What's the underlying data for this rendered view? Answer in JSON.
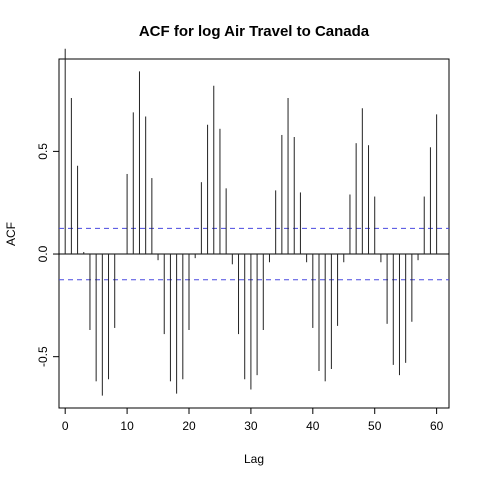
{
  "chart_data": {
    "type": "bar",
    "title": "ACF for log Air Travel to Canada",
    "xlabel": "Lag",
    "ylabel": "ACF",
    "xlim": [
      -1,
      62
    ],
    "ylim": [
      -0.75,
      0.95
    ],
    "x_ticks": [
      0,
      10,
      20,
      30,
      40,
      50,
      60
    ],
    "x_tick_labels": [
      "0",
      "10",
      "20",
      "30",
      "40",
      "50",
      "60"
    ],
    "y_ticks": [
      -0.5,
      0.0,
      0.5
    ],
    "y_tick_labels": [
      "-0.5",
      "0.0",
      "0.5"
    ],
    "confidence_bound": 0.125,
    "lags": [
      0,
      1,
      2,
      3,
      4,
      5,
      6,
      7,
      8,
      9,
      10,
      11,
      12,
      13,
      14,
      15,
      16,
      17,
      18,
      19,
      20,
      21,
      22,
      23,
      24,
      25,
      26,
      27,
      28,
      29,
      30,
      31,
      32,
      33,
      34,
      35,
      36,
      37,
      38,
      39,
      40,
      41,
      42,
      43,
      44,
      45,
      46,
      47,
      48,
      49,
      50,
      51,
      52,
      53,
      54,
      55,
      56,
      57,
      58,
      59,
      60
    ],
    "values": [
      1.0,
      0.76,
      0.43,
      0.01,
      -0.37,
      -0.62,
      -0.69,
      -0.61,
      -0.36,
      0.0,
      0.39,
      0.69,
      0.89,
      0.67,
      0.37,
      -0.03,
      -0.39,
      -0.62,
      -0.68,
      -0.61,
      -0.37,
      -0.02,
      0.35,
      0.63,
      0.82,
      0.61,
      0.32,
      -0.05,
      -0.39,
      -0.61,
      -0.66,
      -0.59,
      -0.37,
      -0.04,
      0.31,
      0.58,
      0.76,
      0.57,
      0.3,
      -0.04,
      -0.36,
      -0.57,
      -0.62,
      -0.56,
      -0.35,
      -0.04,
      0.29,
      0.54,
      0.71,
      0.53,
      0.28,
      -0.04,
      -0.34,
      -0.54,
      -0.59,
      -0.53,
      -0.33,
      -0.03,
      0.28,
      0.52,
      0.68
    ],
    "colors": {
      "bars": "#222222",
      "confidence": "#4a4ae0",
      "axes": "#000000",
      "zero_line": "#000000"
    }
  }
}
